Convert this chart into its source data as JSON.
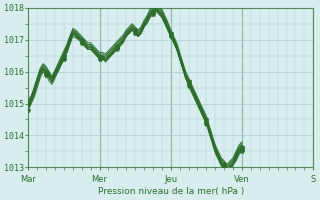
{
  "title": "",
  "xlabel": "Pression niveau de la mer( hPa )",
  "ylabel": "",
  "bg_color": "#d8eeee",
  "grid_color": "#aacccc",
  "line_color": "#2d6e2d",
  "ylim": [
    1013,
    1018
  ],
  "yticks": [
    1013,
    1014,
    1015,
    1016,
    1017,
    1018
  ],
  "day_labels": [
    "Mar",
    "Mer",
    "Jeu",
    "Ven",
    "S"
  ],
  "day_positions": [
    0,
    24,
    48,
    72,
    96
  ],
  "series": [
    [
      1015.0,
      1015.2,
      1015.5,
      1015.8,
      1016.0,
      1016.1,
      1016.0,
      1015.9,
      1015.8,
      1016.0,
      1016.1,
      1016.3,
      1016.5,
      1016.8,
      1017.1,
      1017.3,
      1017.2,
      1017.1,
      1017.0,
      1016.9,
      1016.8,
      1016.8,
      1016.7,
      1016.6,
      1016.5,
      1016.5,
      1016.4,
      1016.5,
      1016.6,
      1016.7,
      1016.8,
      1016.9,
      1017.0,
      1017.2,
      1017.3,
      1017.4,
      1017.3,
      1017.2,
      1017.3,
      1017.5,
      1017.6,
      1017.8,
      1017.9,
      1018.0,
      1017.9,
      1017.8,
      1017.6,
      1017.4,
      1017.2,
      1017.0,
      1016.8,
      1016.5,
      1016.2,
      1015.9,
      1015.7,
      1015.5,
      1015.3,
      1015.1,
      1014.9,
      1014.7,
      1014.5,
      1014.2,
      1013.9,
      1013.6,
      1013.4,
      1013.2,
      1013.1,
      1013.0,
      1013.0,
      1013.1,
      1013.2,
      1013.4,
      1013.5
    ],
    [
      1015.0,
      1015.1,
      1015.3,
      1015.6,
      1015.9,
      1016.0,
      1015.9,
      1015.8,
      1015.7,
      1015.9,
      1016.0,
      1016.2,
      1016.4,
      1016.6,
      1016.9,
      1017.2,
      1017.1,
      1017.0,
      1016.9,
      1016.8,
      1016.7,
      1016.7,
      1016.6,
      1016.5,
      1016.4,
      1016.4,
      1016.3,
      1016.4,
      1016.5,
      1016.6,
      1016.7,
      1016.8,
      1016.9,
      1017.1,
      1017.2,
      1017.3,
      1017.2,
      1017.1,
      1017.2,
      1017.4,
      1017.5,
      1017.7,
      1017.8,
      1017.9,
      1017.8,
      1017.7,
      1017.5,
      1017.3,
      1017.1,
      1016.9,
      1016.7,
      1016.4,
      1016.1,
      1015.8,
      1015.6,
      1015.4,
      1015.2,
      1015.0,
      1014.8,
      1014.6,
      1014.4,
      1014.1,
      1013.8,
      1013.5,
      1013.3,
      1013.1,
      1013.0,
      1012.9,
      1013.0,
      1013.1,
      1013.3,
      1013.5,
      1013.6
    ],
    [
      1015.0,
      1015.1,
      1015.4,
      1015.7,
      1016.0,
      1016.1,
      1016.0,
      1015.9,
      1015.8,
      1016.0,
      1016.1,
      1016.3,
      1016.5,
      1016.7,
      1017.0,
      1017.25,
      1017.15,
      1017.05,
      1016.95,
      1016.85,
      1016.75,
      1016.75,
      1016.65,
      1016.55,
      1016.45,
      1016.45,
      1016.35,
      1016.45,
      1016.55,
      1016.65,
      1016.75,
      1016.85,
      1016.95,
      1017.15,
      1017.25,
      1017.35,
      1017.25,
      1017.15,
      1017.25,
      1017.45,
      1017.55,
      1017.75,
      1017.85,
      1017.95,
      1017.85,
      1017.75,
      1017.55,
      1017.35,
      1017.15,
      1016.95,
      1016.75,
      1016.45,
      1016.15,
      1015.85,
      1015.65,
      1015.45,
      1015.25,
      1015.05,
      1014.85,
      1014.65,
      1014.45,
      1014.15,
      1013.85,
      1013.55,
      1013.35,
      1013.15,
      1013.05,
      1012.95,
      1013.05,
      1013.15,
      1013.35,
      1013.55,
      1013.65
    ],
    [
      1014.8,
      1015.0,
      1015.2,
      1015.5,
      1015.8,
      1016.0,
      1015.9,
      1015.7,
      1015.6,
      1015.8,
      1016.0,
      1016.2,
      1016.4,
      1016.6,
      1016.85,
      1017.1,
      1017.05,
      1017.0,
      1016.9,
      1016.8,
      1016.7,
      1016.7,
      1016.6,
      1016.5,
      1016.4,
      1016.4,
      1016.35,
      1016.45,
      1016.55,
      1016.65,
      1016.75,
      1016.85,
      1017.0,
      1017.1,
      1017.2,
      1017.3,
      1017.2,
      1017.1,
      1017.2,
      1017.4,
      1017.55,
      1017.7,
      1017.8,
      1017.9,
      1017.8,
      1017.7,
      1017.5,
      1017.3,
      1017.1,
      1016.9,
      1016.7,
      1016.4,
      1016.1,
      1015.8,
      1015.55,
      1015.35,
      1015.15,
      1014.95,
      1014.75,
      1014.55,
      1014.35,
      1014.05,
      1013.75,
      1013.45,
      1013.25,
      1013.05,
      1012.95,
      1012.85,
      1012.95,
      1013.05,
      1013.25,
      1013.45,
      1013.55
    ],
    [
      1014.9,
      1015.05,
      1015.3,
      1015.6,
      1015.9,
      1016.05,
      1015.95,
      1015.8,
      1015.65,
      1015.85,
      1016.05,
      1016.25,
      1016.45,
      1016.65,
      1016.9,
      1017.15,
      1017.1,
      1017.0,
      1016.9,
      1016.8,
      1016.7,
      1016.7,
      1016.6,
      1016.5,
      1016.4,
      1016.4,
      1016.35,
      1016.45,
      1016.55,
      1016.65,
      1016.75,
      1016.85,
      1016.95,
      1017.1,
      1017.2,
      1017.3,
      1017.2,
      1017.1,
      1017.2,
      1017.4,
      1017.55,
      1017.75,
      1017.85,
      1017.95,
      1017.85,
      1017.75,
      1017.55,
      1017.35,
      1017.1,
      1016.9,
      1016.7,
      1016.4,
      1016.1,
      1015.8,
      1015.6,
      1015.4,
      1015.2,
      1015.0,
      1014.8,
      1014.6,
      1014.4,
      1014.1,
      1013.8,
      1013.5,
      1013.3,
      1013.1,
      1013.0,
      1012.9,
      1013.0,
      1013.1,
      1013.3,
      1013.5,
      1013.6
    ],
    [
      1015.0,
      1015.1,
      1015.35,
      1015.65,
      1015.95,
      1016.1,
      1016.0,
      1015.85,
      1015.7,
      1015.9,
      1016.1,
      1016.3,
      1016.5,
      1016.7,
      1016.95,
      1017.2,
      1017.15,
      1017.05,
      1016.95,
      1016.85,
      1016.75,
      1016.75,
      1016.65,
      1016.55,
      1016.45,
      1016.45,
      1016.4,
      1016.5,
      1016.6,
      1016.7,
      1016.8,
      1016.9,
      1017.0,
      1017.15,
      1017.25,
      1017.35,
      1017.25,
      1017.15,
      1017.25,
      1017.45,
      1017.6,
      1017.8,
      1017.9,
      1018.0,
      1017.9,
      1017.8,
      1017.6,
      1017.4,
      1017.15,
      1016.95,
      1016.75,
      1016.45,
      1016.15,
      1015.85,
      1015.65,
      1015.45,
      1015.25,
      1015.05,
      1014.85,
      1014.65,
      1014.45,
      1014.15,
      1013.85,
      1013.55,
      1013.35,
      1013.15,
      1013.05,
      1012.95,
      1013.05,
      1013.15,
      1013.35,
      1013.55,
      1013.65
    ],
    [
      1015.0,
      1015.15,
      1015.4,
      1015.7,
      1016.0,
      1016.15,
      1016.05,
      1015.9,
      1015.75,
      1015.95,
      1016.15,
      1016.35,
      1016.55,
      1016.75,
      1017.0,
      1017.25,
      1017.2,
      1017.1,
      1017.0,
      1016.9,
      1016.8,
      1016.8,
      1016.7,
      1016.6,
      1016.5,
      1016.5,
      1016.45,
      1016.55,
      1016.65,
      1016.75,
      1016.85,
      1016.95,
      1017.05,
      1017.2,
      1017.3,
      1017.4,
      1017.3,
      1017.2,
      1017.3,
      1017.5,
      1017.65,
      1017.85,
      1017.95,
      1018.05,
      1017.95,
      1017.85,
      1017.65,
      1017.45,
      1017.2,
      1017.0,
      1016.8,
      1016.5,
      1016.2,
      1015.9,
      1015.7,
      1015.5,
      1015.3,
      1015.1,
      1014.9,
      1014.7,
      1014.5,
      1014.2,
      1013.9,
      1013.6,
      1013.4,
      1013.2,
      1013.1,
      1013.0,
      1013.1,
      1013.2,
      1013.4,
      1013.6,
      1013.7
    ],
    [
      1015.05,
      1015.2,
      1015.45,
      1015.75,
      1016.05,
      1016.2,
      1016.1,
      1015.95,
      1015.8,
      1016.0,
      1016.2,
      1016.4,
      1016.6,
      1016.8,
      1017.05,
      1017.3,
      1017.25,
      1017.15,
      1017.05,
      1016.95,
      1016.85,
      1016.85,
      1016.75,
      1016.65,
      1016.55,
      1016.55,
      1016.5,
      1016.6,
      1016.7,
      1016.8,
      1016.9,
      1017.0,
      1017.1,
      1017.25,
      1017.35,
      1017.45,
      1017.35,
      1017.25,
      1017.35,
      1017.55,
      1017.7,
      1017.9,
      1018.0,
      1018.1,
      1018.0,
      1017.9,
      1017.7,
      1017.5,
      1017.25,
      1017.05,
      1016.85,
      1016.55,
      1016.25,
      1015.95,
      1015.75,
      1015.55,
      1015.35,
      1015.15,
      1014.95,
      1014.75,
      1014.55,
      1014.25,
      1013.95,
      1013.65,
      1013.45,
      1013.25,
      1013.15,
      1013.05,
      1013.15,
      1013.25,
      1013.45,
      1013.65,
      1013.75
    ],
    [
      1015.1,
      1015.25,
      1015.5,
      1015.8,
      1016.1,
      1016.25,
      1016.15,
      1016.0,
      1015.85,
      1016.05,
      1016.25,
      1016.45,
      1016.65,
      1016.85,
      1017.1,
      1017.35,
      1017.3,
      1017.2,
      1017.1,
      1017.0,
      1016.9,
      1016.9,
      1016.8,
      1016.7,
      1016.6,
      1016.6,
      1016.55,
      1016.65,
      1016.75,
      1016.85,
      1016.95,
      1017.05,
      1017.15,
      1017.3,
      1017.4,
      1017.5,
      1017.4,
      1017.3,
      1017.4,
      1017.6,
      1017.75,
      1017.95,
      1018.05,
      1018.15,
      1018.05,
      1017.95,
      1017.75,
      1017.55,
      1017.3,
      1017.1,
      1016.9,
      1016.6,
      1016.3,
      1016.0,
      1015.8,
      1015.6,
      1015.4,
      1015.2,
      1015.0,
      1014.8,
      1014.6,
      1014.3,
      1014.0,
      1013.7,
      1013.5,
      1013.3,
      1013.2,
      1013.1,
      1013.2,
      1013.3,
      1013.5,
      1013.7,
      1013.8
    ]
  ],
  "marker_series": [
    0,
    1,
    2,
    3
  ],
  "marker_interval": 6
}
